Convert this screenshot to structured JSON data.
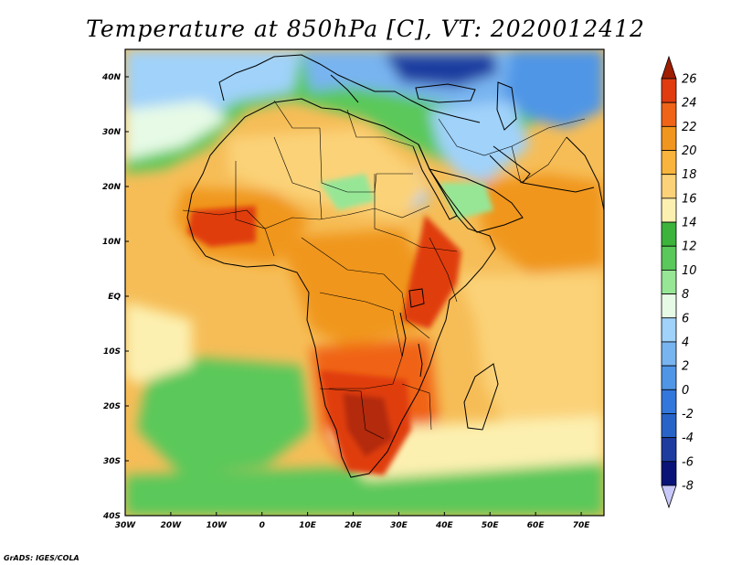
{
  "title": "Temperature at 850hPa [C], VT: 2020012412",
  "credit": "GrADS: IGES/COLA",
  "map": {
    "lon_range": [
      -30,
      75
    ],
    "lat_range": [
      -40,
      45
    ],
    "lon_ticks": [
      {
        "value": -30,
        "label": "30W"
      },
      {
        "value": -20,
        "label": "20W"
      },
      {
        "value": -10,
        "label": "10W"
      },
      {
        "value": 0,
        "label": "0"
      },
      {
        "value": 10,
        "label": "10E"
      },
      {
        "value": 20,
        "label": "20E"
      },
      {
        "value": 30,
        "label": "30E"
      },
      {
        "value": 40,
        "label": "40E"
      },
      {
        "value": 50,
        "label": "50E"
      },
      {
        "value": 60,
        "label": "60E"
      },
      {
        "value": 70,
        "label": "70E"
      }
    ],
    "lat_ticks": [
      {
        "value": 40,
        "label": "40N"
      },
      {
        "value": 30,
        "label": "30N"
      },
      {
        "value": 20,
        "label": "20N"
      },
      {
        "value": 10,
        "label": "10N"
      },
      {
        "value": 0,
        "label": "EQ"
      },
      {
        "value": -10,
        "label": "10S"
      },
      {
        "value": -20,
        "label": "20S"
      },
      {
        "value": -30,
        "label": "30S"
      },
      {
        "value": -40,
        "label": "40S"
      }
    ]
  },
  "colorbar": {
    "levels": [
      "26",
      "24",
      "22",
      "20",
      "18",
      "16",
      "14",
      "12",
      "10",
      "8",
      "6",
      "4",
      "2",
      "0",
      "-2",
      "-4",
      "-6",
      "-8"
    ],
    "colors": [
      "#a01e00",
      "#e03c10",
      "#f06418",
      "#f0961e",
      "#f8b43c",
      "#fbd278",
      "#fcf0b0",
      "#3cb43c",
      "#5ac85a",
      "#96e696",
      "#e6fae6",
      "#a0d2fa",
      "#78b4f0",
      "#5096e6",
      "#3278dc",
      "#2864c8",
      "#1e3ca0",
      "#0a1478",
      "#c8c8fa"
    ]
  }
}
